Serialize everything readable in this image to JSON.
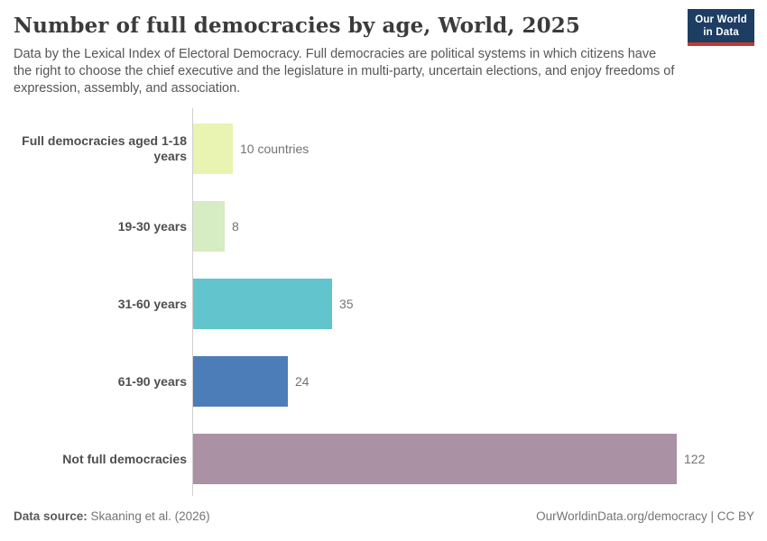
{
  "header": {
    "title": "Number of full democracies by age, World, 2025",
    "subtitle": "Data by the Lexical Index of Electoral Democracy. Full democracies are political systems in which citizens have the right to choose the chief executive and the legislature in multi-party, uncertain elections, and enjoy freedoms of expression, assembly, and association.",
    "logo": {
      "line1": "Our World",
      "line2": "in Data"
    }
  },
  "chart_data": {
    "type": "bar",
    "orientation": "horizontal",
    "title": "Number of full democracies by age, World, 2025",
    "categories": [
      "Full democracies aged 1-18 years",
      "19-30 years",
      "31-60 years",
      "61-90 years",
      "Not full democracies"
    ],
    "values": [
      10,
      8,
      35,
      24,
      122
    ],
    "value_labels": [
      "10 countries",
      "8",
      "35",
      "24",
      "122"
    ],
    "bar_colors": [
      "#e9f3b2",
      "#d6ecc3",
      "#62c4cc",
      "#4d7db8",
      "#ab91a4"
    ],
    "xlabel": "",
    "ylabel": "",
    "xlim": [
      0,
      122
    ],
    "grid": false,
    "legend": false
  },
  "footer": {
    "datasource_label": "Data source:",
    "datasource_value": " Skaaning et al. (2026)",
    "license": "OurWorldinData.org/democracy | CC BY"
  },
  "colors": {
    "title": "#3b3b3b",
    "subtitle": "#565656",
    "axis_line": "#cfcfcf",
    "category_label": "#4e4e4e",
    "value_label": "#737373",
    "logo_navy": "#1d3d63",
    "logo_red": "#bf3a32",
    "background": "#ffffff"
  }
}
